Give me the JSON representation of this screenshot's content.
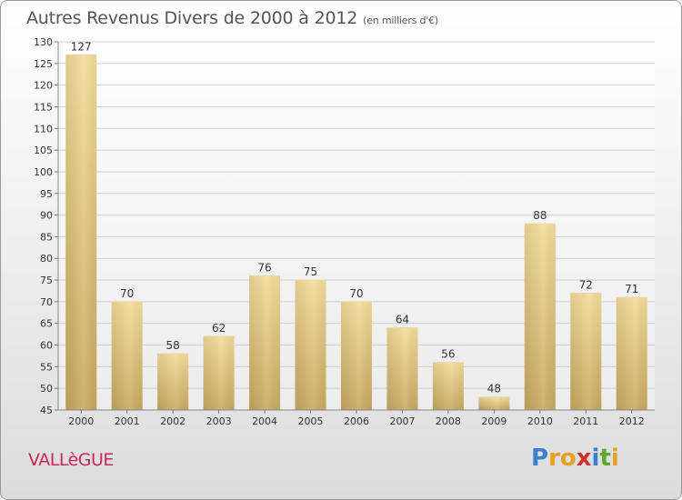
{
  "title": "Autres Revenus Divers de 2000 à 2012",
  "subtitle": "(en milliers d'€)",
  "commune": "VALLèGUE",
  "logo": {
    "letters": [
      "P",
      "r",
      "o",
      "x",
      "i",
      "t",
      "i"
    ],
    "colors": [
      "#3a7fd0",
      "#e8a020",
      "#e8a020",
      "#d03030",
      "#3a7fd0",
      "#5aaa30",
      "#e8a020"
    ]
  },
  "colors": {
    "bar_light": "#f5dc9a",
    "bar_dark": "#c8aa60",
    "grid": "#d0d0d0",
    "axis_text": "#333333"
  },
  "chart_data": {
    "type": "bar",
    "categories": [
      "2000",
      "2001",
      "2002",
      "2003",
      "2004",
      "2005",
      "2006",
      "2007",
      "2008",
      "2009",
      "2010",
      "2011",
      "2012"
    ],
    "values": [
      127,
      70,
      58,
      62,
      76,
      75,
      70,
      64,
      56,
      48,
      88,
      72,
      71
    ],
    "ylim": [
      45,
      130
    ],
    "yticks": [
      45,
      50,
      55,
      60,
      65,
      70,
      75,
      80,
      85,
      90,
      95,
      100,
      105,
      110,
      115,
      120,
      125,
      130
    ],
    "grid": true,
    "xlabel": "",
    "ylabel": ""
  }
}
